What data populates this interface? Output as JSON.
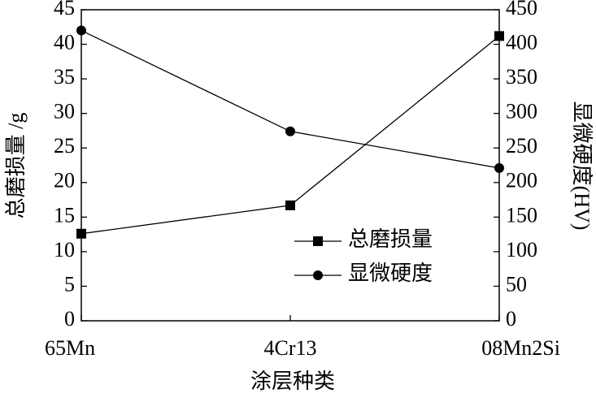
{
  "chart_data": {
    "type": "line",
    "categories": [
      "65Mn",
      "4Cr13",
      "08Mn2Si"
    ],
    "x_label": "涂层种类",
    "y_label": "总磨损量 /g",
    "y2_label": "显微硬度(HV)",
    "series": [
      {
        "name": "总磨损量",
        "color": "#000000",
        "marker": "square",
        "values": [
          12.6,
          16.7,
          41.2
        ]
      },
      {
        "name": "显微硬度",
        "color": "#000000",
        "marker": "circle",
        "axis": "y2",
        "values": [
          420,
          274,
          221
        ]
      }
    ],
    "ylim": [
      0,
      45
    ],
    "yticks": [
      0,
      5,
      10,
      15,
      20,
      25,
      30,
      35,
      40,
      45
    ],
    "y2lim": [
      0,
      450
    ],
    "y2ticks": [
      0,
      50,
      100,
      150,
      200,
      250,
      300,
      350,
      400,
      450
    ],
    "legend": "right",
    "grid": false
  }
}
